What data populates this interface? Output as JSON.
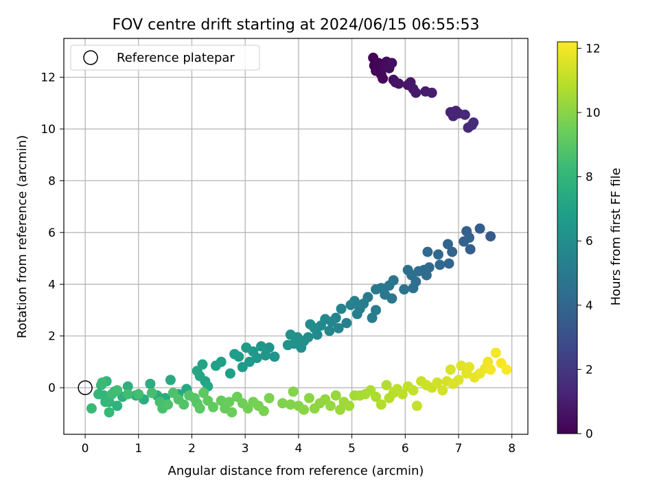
{
  "chart_data": {
    "type": "scatter",
    "title": "FOV centre drift starting at 2024/06/15 06:55:53",
    "xlabel": "Angular distance from reference (arcmin)",
    "ylabel": "Rotation from reference (arcmin)",
    "xlim": [
      -0.4,
      8.3
    ],
    "ylim": [
      -1.8,
      13.5
    ],
    "xticks": [
      "0",
      "1",
      "2",
      "3",
      "4",
      "5",
      "6",
      "7",
      "8"
    ],
    "xtick_values": [
      0,
      1,
      2,
      3,
      4,
      5,
      6,
      7,
      8
    ],
    "yticks": [
      "0",
      "2",
      "4",
      "6",
      "8",
      "10",
      "12"
    ],
    "ytick_values": [
      0,
      2,
      4,
      6,
      8,
      10,
      12
    ],
    "grid": true,
    "legend": {
      "placement": "top-left",
      "entries": [
        "Reference platepar"
      ]
    },
    "reference_point": {
      "x": 0,
      "y": 0
    },
    "colorbar": {
      "label": "Hours from first FF file",
      "range": [
        0,
        12.2
      ],
      "ticks": [
        "0",
        "2",
        "4",
        "6",
        "8",
        "10",
        "12"
      ],
      "tick_values": [
        0,
        2,
        4,
        6,
        8,
        10,
        12
      ],
      "colormap": [
        "#440154",
        "#482878",
        "#3e4989",
        "#31688e",
        "#26828e",
        "#1f9e89",
        "#35b779",
        "#6ece58",
        "#b5de2b",
        "#fde725"
      ]
    },
    "points": [
      {
        "x": 5.4,
        "y": 12.75,
        "t": 0.0
      },
      {
        "x": 5.42,
        "y": 12.45,
        "t": 0.05
      },
      {
        "x": 5.45,
        "y": 12.25,
        "t": 0.1
      },
      {
        "x": 5.5,
        "y": 12.55,
        "t": 0.15
      },
      {
        "x": 5.55,
        "y": 12.1,
        "t": 0.2
      },
      {
        "x": 5.58,
        "y": 11.95,
        "t": 0.25
      },
      {
        "x": 5.62,
        "y": 12.4,
        "t": 0.3
      },
      {
        "x": 5.65,
        "y": 12.6,
        "t": 0.35
      },
      {
        "x": 5.7,
        "y": 12.35,
        "t": 0.4
      },
      {
        "x": 5.75,
        "y": 12.55,
        "t": 0.45
      },
      {
        "x": 5.78,
        "y": 11.9,
        "t": 0.5
      },
      {
        "x": 5.82,
        "y": 11.8,
        "t": 0.55
      },
      {
        "x": 5.88,
        "y": 11.75,
        "t": 0.6
      },
      {
        "x": 6.05,
        "y": 11.7,
        "t": 0.7
      },
      {
        "x": 6.1,
        "y": 11.8,
        "t": 0.75
      },
      {
        "x": 6.15,
        "y": 11.55,
        "t": 0.8
      },
      {
        "x": 6.2,
        "y": 11.4,
        "t": 0.85
      },
      {
        "x": 6.38,
        "y": 11.45,
        "t": 0.95
      },
      {
        "x": 6.5,
        "y": 11.4,
        "t": 1.0
      },
      {
        "x": 6.85,
        "y": 10.65,
        "t": 1.15
      },
      {
        "x": 6.9,
        "y": 10.5,
        "t": 1.2
      },
      {
        "x": 6.95,
        "y": 10.7,
        "t": 1.25
      },
      {
        "x": 7.0,
        "y": 10.6,
        "t": 1.3
      },
      {
        "x": 7.12,
        "y": 10.55,
        "t": 1.35
      },
      {
        "x": 7.18,
        "y": 10.05,
        "t": 1.4
      },
      {
        "x": 7.25,
        "y": 10.15,
        "t": 1.45
      },
      {
        "x": 7.28,
        "y": 10.25,
        "t": 1.5
      },
      {
        "x": 7.6,
        "y": 5.85,
        "t": 3.55
      },
      {
        "x": 7.4,
        "y": 6.15,
        "t": 3.6
      },
      {
        "x": 7.22,
        "y": 5.35,
        "t": 3.65
      },
      {
        "x": 7.15,
        "y": 6.05,
        "t": 3.7
      },
      {
        "x": 7.1,
        "y": 5.65,
        "t": 3.75
      },
      {
        "x": 7.2,
        "y": 5.8,
        "t": 3.8
      },
      {
        "x": 6.88,
        "y": 5.25,
        "t": 3.9
      },
      {
        "x": 6.8,
        "y": 5.55,
        "t": 3.95
      },
      {
        "x": 6.82,
        "y": 4.8,
        "t": 4.0
      },
      {
        "x": 6.65,
        "y": 4.75,
        "t": 4.05
      },
      {
        "x": 6.62,
        "y": 5.15,
        "t": 4.1
      },
      {
        "x": 6.42,
        "y": 5.25,
        "t": 4.15
      },
      {
        "x": 6.45,
        "y": 4.65,
        "t": 4.2
      },
      {
        "x": 6.4,
        "y": 4.35,
        "t": 4.25
      },
      {
        "x": 6.35,
        "y": 4.55,
        "t": 4.3
      },
      {
        "x": 6.25,
        "y": 4.5,
        "t": 4.35
      },
      {
        "x": 6.2,
        "y": 4.1,
        "t": 4.4
      },
      {
        "x": 6.12,
        "y": 4.35,
        "t": 4.45
      },
      {
        "x": 6.05,
        "y": 4.55,
        "t": 4.5
      },
      {
        "x": 6.15,
        "y": 3.85,
        "t": 4.55
      },
      {
        "x": 5.98,
        "y": 3.8,
        "t": 4.6
      },
      {
        "x": 5.78,
        "y": 4.15,
        "t": 4.7
      },
      {
        "x": 5.7,
        "y": 3.95,
        "t": 4.75
      },
      {
        "x": 5.62,
        "y": 3.6,
        "t": 4.8
      },
      {
        "x": 5.75,
        "y": 3.45,
        "t": 4.85
      },
      {
        "x": 5.55,
        "y": 3.85,
        "t": 4.9
      },
      {
        "x": 5.45,
        "y": 3.8,
        "t": 4.95
      },
      {
        "x": 5.3,
        "y": 3.5,
        "t": 5.0
      },
      {
        "x": 5.45,
        "y": 3.0,
        "t": 5.05
      },
      {
        "x": 5.38,
        "y": 2.7,
        "t": 5.1
      },
      {
        "x": 5.22,
        "y": 3.25,
        "t": 5.15
      },
      {
        "x": 5.15,
        "y": 3.05,
        "t": 5.2
      },
      {
        "x": 5.1,
        "y": 2.85,
        "t": 5.25
      },
      {
        "x": 5.05,
        "y": 3.35,
        "t": 5.3
      },
      {
        "x": 4.98,
        "y": 3.2,
        "t": 5.35
      },
      {
        "x": 4.9,
        "y": 2.5,
        "t": 5.4
      },
      {
        "x": 4.8,
        "y": 3.05,
        "t": 5.45
      },
      {
        "x": 4.75,
        "y": 2.3,
        "t": 5.5
      },
      {
        "x": 4.7,
        "y": 2.7,
        "t": 5.55
      },
      {
        "x": 4.62,
        "y": 2.55,
        "t": 5.6
      },
      {
        "x": 4.58,
        "y": 2.2,
        "t": 5.65
      },
      {
        "x": 4.5,
        "y": 2.65,
        "t": 5.7
      },
      {
        "x": 4.42,
        "y": 2.4,
        "t": 5.75
      },
      {
        "x": 4.35,
        "y": 2.05,
        "t": 5.8
      },
      {
        "x": 4.3,
        "y": 2.3,
        "t": 5.85
      },
      {
        "x": 4.22,
        "y": 2.45,
        "t": 5.9
      },
      {
        "x": 4.18,
        "y": 1.95,
        "t": 5.95
      },
      {
        "x": 4.1,
        "y": 1.8,
        "t": 6.0
      },
      {
        "x": 4.05,
        "y": 1.55,
        "t": 6.05
      },
      {
        "x": 3.98,
        "y": 1.95,
        "t": 6.1
      },
      {
        "x": 3.92,
        "y": 1.7,
        "t": 6.15
      },
      {
        "x": 3.85,
        "y": 2.05,
        "t": 6.2
      },
      {
        "x": 3.8,
        "y": 1.65,
        "t": 6.25
      },
      {
        "x": 3.55,
        "y": 1.2,
        "t": 6.3
      },
      {
        "x": 3.45,
        "y": 1.55,
        "t": 6.35
      },
      {
        "x": 3.38,
        "y": 1.25,
        "t": 6.4
      },
      {
        "x": 3.3,
        "y": 1.6,
        "t": 6.45
      },
      {
        "x": 3.22,
        "y": 1.15,
        "t": 6.5
      },
      {
        "x": 3.15,
        "y": 1.4,
        "t": 6.55
      },
      {
        "x": 3.08,
        "y": 1.0,
        "t": 6.6
      },
      {
        "x": 3.02,
        "y": 1.55,
        "t": 6.65
      },
      {
        "x": 2.95,
        "y": 0.8,
        "t": 6.7
      },
      {
        "x": 2.88,
        "y": 1.2,
        "t": 6.75
      },
      {
        "x": 2.8,
        "y": 1.3,
        "t": 6.8
      },
      {
        "x": 2.72,
        "y": 0.55,
        "t": 6.85
      },
      {
        "x": 2.55,
        "y": 1.0,
        "t": 6.9
      },
      {
        "x": 2.45,
        "y": 0.85,
        "t": 6.95
      },
      {
        "x": 2.25,
        "y": 0.25,
        "t": 7.0
      },
      {
        "x": 2.2,
        "y": 0.9,
        "t": 7.05
      },
      {
        "x": 2.15,
        "y": 0.45,
        "t": 7.1
      },
      {
        "x": 2.1,
        "y": 0.65,
        "t": 7.15
      },
      {
        "x": 2.3,
        "y": 0.05,
        "t": 7.2
      },
      {
        "x": 1.9,
        "y": -0.05,
        "t": 7.3
      },
      {
        "x": 1.75,
        "y": -0.25,
        "t": 7.35
      },
      {
        "x": 1.6,
        "y": 0.3,
        "t": 7.4
      },
      {
        "x": 1.5,
        "y": -0.4,
        "t": 7.45
      },
      {
        "x": 1.35,
        "y": -0.3,
        "t": 7.5
      },
      {
        "x": 1.22,
        "y": 0.15,
        "t": 7.55
      },
      {
        "x": 1.1,
        "y": -0.45,
        "t": 7.6
      },
      {
        "x": 0.95,
        "y": -0.3,
        "t": 7.65
      },
      {
        "x": 0.8,
        "y": 0.05,
        "t": 7.7
      },
      {
        "x": 0.7,
        "y": -0.35,
        "t": 7.75
      },
      {
        "x": 0.6,
        "y": -0.7,
        "t": 7.8
      },
      {
        "x": 0.55,
        "y": -0.15,
        "t": 7.85
      },
      {
        "x": 0.45,
        "y": -0.55,
        "t": 7.9
      },
      {
        "x": 0.4,
        "y": 0.25,
        "t": 7.95
      },
      {
        "x": 0.35,
        "y": -0.3,
        "t": 8.0
      },
      {
        "x": 0.3,
        "y": 0.1,
        "t": 8.05
      },
      {
        "x": 0.25,
        "y": -0.25,
        "t": 8.1
      },
      {
        "x": 0.38,
        "y": -0.55,
        "t": 8.15
      },
      {
        "x": 0.45,
        "y": -0.95,
        "t": 8.2
      },
      {
        "x": 0.12,
        "y": -0.8,
        "t": 8.25
      },
      {
        "x": 0.32,
        "y": 0.2,
        "t": 8.3
      },
      {
        "x": 0.5,
        "y": -0.25,
        "t": 8.35
      },
      {
        "x": 0.6,
        "y": -0.1,
        "t": 8.4
      },
      {
        "x": 0.8,
        "y": -0.25,
        "t": 8.45
      },
      {
        "x": 1.0,
        "y": -0.25,
        "t": 8.5
      },
      {
        "x": 1.25,
        "y": -0.2,
        "t": 8.55
      },
      {
        "x": 1.4,
        "y": -0.55,
        "t": 8.6
      },
      {
        "x": 1.45,
        "y": -0.8,
        "t": 8.65
      },
      {
        "x": 1.55,
        "y": -0.65,
        "t": 8.7
      },
      {
        "x": 1.65,
        "y": -0.2,
        "t": 8.75
      },
      {
        "x": 1.75,
        "y": -0.45,
        "t": 8.8
      },
      {
        "x": 1.85,
        "y": -0.65,
        "t": 8.85
      },
      {
        "x": 1.95,
        "y": -0.3,
        "t": 8.9
      },
      {
        "x": 2.05,
        "y": -0.4,
        "t": 8.95
      },
      {
        "x": 2.1,
        "y": -0.6,
        "t": 9.0
      },
      {
        "x": 2.15,
        "y": -0.8,
        "t": 9.05
      },
      {
        "x": 2.22,
        "y": -0.2,
        "t": 9.1
      },
      {
        "x": 2.3,
        "y": -0.5,
        "t": 9.15
      },
      {
        "x": 2.4,
        "y": -0.75,
        "t": 9.2
      },
      {
        "x": 2.55,
        "y": -0.5,
        "t": 9.25
      },
      {
        "x": 2.62,
        "y": -0.8,
        "t": 9.3
      },
      {
        "x": 2.7,
        "y": -0.55,
        "t": 9.35
      },
      {
        "x": 2.75,
        "y": -0.95,
        "t": 9.4
      },
      {
        "x": 2.85,
        "y": -0.35,
        "t": 9.45
      },
      {
        "x": 2.95,
        "y": -0.6,
        "t": 9.5
      },
      {
        "x": 3.05,
        "y": -0.8,
        "t": 9.55
      },
      {
        "x": 3.15,
        "y": -0.55,
        "t": 9.6
      },
      {
        "x": 3.25,
        "y": -0.7,
        "t": 9.65
      },
      {
        "x": 3.35,
        "y": -0.9,
        "t": 9.7
      },
      {
        "x": 3.45,
        "y": -0.4,
        "t": 9.75
      },
      {
        "x": 3.7,
        "y": -0.6,
        "t": 9.8
      },
      {
        "x": 3.85,
        "y": -0.65,
        "t": 9.85
      },
      {
        "x": 3.9,
        "y": -0.15,
        "t": 9.9
      },
      {
        "x": 4.0,
        "y": -0.7,
        "t": 9.95
      },
      {
        "x": 4.1,
        "y": -0.85,
        "t": 10.0
      },
      {
        "x": 4.2,
        "y": -0.4,
        "t": 10.05
      },
      {
        "x": 4.3,
        "y": -0.8,
        "t": 10.1
      },
      {
        "x": 4.4,
        "y": -0.6,
        "t": 10.15
      },
      {
        "x": 4.5,
        "y": -0.45,
        "t": 10.2
      },
      {
        "x": 4.6,
        "y": -0.7,
        "t": 10.25
      },
      {
        "x": 4.7,
        "y": -0.3,
        "t": 10.3
      },
      {
        "x": 4.78,
        "y": -0.85,
        "t": 10.35
      },
      {
        "x": 4.85,
        "y": -0.55,
        "t": 10.4
      },
      {
        "x": 4.95,
        "y": -0.7,
        "t": 10.45
      },
      {
        "x": 5.05,
        "y": -0.3,
        "t": 10.5
      },
      {
        "x": 5.15,
        "y": -0.3,
        "t": 10.55
      },
      {
        "x": 5.25,
        "y": -0.25,
        "t": 10.6
      },
      {
        "x": 5.35,
        "y": -0.1,
        "t": 10.65
      },
      {
        "x": 5.45,
        "y": -0.35,
        "t": 10.7
      },
      {
        "x": 5.55,
        "y": -0.65,
        "t": 10.75
      },
      {
        "x": 5.65,
        "y": 0.1,
        "t": 10.8
      },
      {
        "x": 5.7,
        "y": -0.4,
        "t": 10.85
      },
      {
        "x": 5.78,
        "y": -0.2,
        "t": 10.9
      },
      {
        "x": 5.85,
        "y": -0.05,
        "t": 10.95
      },
      {
        "x": 5.95,
        "y": -0.25,
        "t": 11.0
      },
      {
        "x": 6.05,
        "y": 0.05,
        "t": 11.05
      },
      {
        "x": 6.15,
        "y": -0.1,
        "t": 11.1
      },
      {
        "x": 6.22,
        "y": -0.7,
        "t": 11.15
      },
      {
        "x": 6.3,
        "y": 0.25,
        "t": 11.2
      },
      {
        "x": 6.4,
        "y": 0.1,
        "t": 11.25
      },
      {
        "x": 6.5,
        "y": 0.0,
        "t": 11.3
      },
      {
        "x": 6.6,
        "y": 0.2,
        "t": 11.35
      },
      {
        "x": 6.7,
        "y": -0.1,
        "t": 11.4
      },
      {
        "x": 6.78,
        "y": 0.25,
        "t": 11.45
      },
      {
        "x": 6.85,
        "y": 0.7,
        "t": 11.5
      },
      {
        "x": 6.9,
        "y": 0.15,
        "t": 11.55
      },
      {
        "x": 7.0,
        "y": 0.3,
        "t": 11.6
      },
      {
        "x": 7.05,
        "y": 0.85,
        "t": 11.65
      },
      {
        "x": 7.15,
        "y": 0.55,
        "t": 11.7
      },
      {
        "x": 7.2,
        "y": 0.8,
        "t": 11.75
      },
      {
        "x": 7.3,
        "y": 0.4,
        "t": 11.8
      },
      {
        "x": 7.4,
        "y": 0.55,
        "t": 11.85
      },
      {
        "x": 7.5,
        "y": 0.75,
        "t": 11.9
      },
      {
        "x": 7.55,
        "y": 1.0,
        "t": 11.95
      },
      {
        "x": 7.6,
        "y": 0.7,
        "t": 12.0
      },
      {
        "x": 7.7,
        "y": 1.35,
        "t": 12.05
      },
      {
        "x": 7.8,
        "y": 0.95,
        "t": 12.1
      },
      {
        "x": 7.9,
        "y": 0.7,
        "t": 12.15
      }
    ]
  }
}
